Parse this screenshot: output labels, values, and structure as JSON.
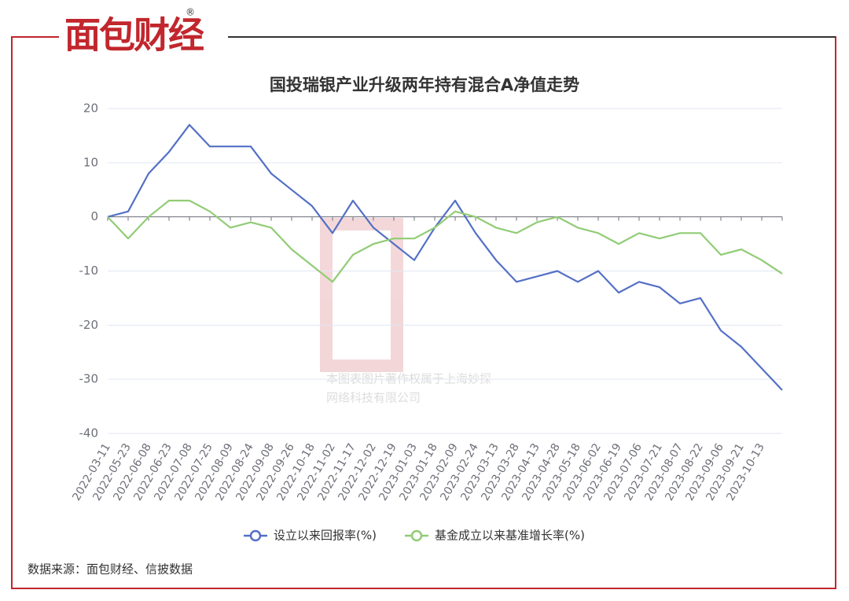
{
  "header": {
    "logo": "面包财经",
    "logo_mark": "®"
  },
  "chart_data": {
    "type": "line",
    "title": "国投瑞银产业升级两年持有混合A净值走势",
    "categories": [
      "2022-03-11",
      "2022-05-23",
      "2022-06-08",
      "2022-06-23",
      "2022-07-08",
      "2022-07-25",
      "2022-08-09",
      "2022-08-24",
      "2022-09-08",
      "2022-09-26",
      "2022-10-18",
      "2022-11-02",
      "2022-11-17",
      "2022-12-02",
      "2022-12-19",
      "2023-01-03",
      "2023-01-18",
      "2023-02-09",
      "2023-02-24",
      "2023-03-13",
      "2023-03-28",
      "2023-04-13",
      "2023-04-28",
      "2023-05-18",
      "2023-06-02",
      "2023-06-19",
      "2023-07-06",
      "2023-07-21",
      "2023-08-07",
      "2023-08-22",
      "2023-09-06",
      "2023-09-21",
      "2023-10-13",
      null
    ],
    "series": [
      {
        "name": "设立以来回报率(%)",
        "color": "#5470c6",
        "values": [
          0,
          1,
          8,
          12,
          17,
          13,
          13,
          13,
          8,
          5,
          2,
          -3,
          3,
          -2,
          -5,
          -8,
          -2,
          3,
          -3,
          -8,
          -12,
          -11,
          -10,
          -12,
          -10,
          -14,
          -12,
          -13,
          -16,
          -15,
          -21,
          -24,
          -28,
          -32
        ]
      },
      {
        "name": "基金成立以来基准增长率(%)",
        "color": "#91cc75",
        "values": [
          0,
          -4,
          0,
          3,
          3,
          1,
          -2,
          -1,
          -2,
          -6,
          -9,
          -12,
          -7,
          -5,
          -4,
          -4,
          -2,
          1,
          0,
          -2,
          -3,
          -1,
          0,
          -2,
          -3,
          -5,
          -3,
          -4,
          -3,
          -3,
          -7,
          -6,
          -8,
          -10.5
        ]
      }
    ],
    "ylim": [
      -40,
      20
    ],
    "yticks": [
      -40,
      -30,
      -20,
      -10,
      0,
      10,
      20
    ],
    "grid": true
  },
  "watermark": {
    "line1": "本图表图片著作权属于上海妙探",
    "line2": "网络科技有限公司"
  },
  "source": "数据来源：面包财经、信披数据"
}
